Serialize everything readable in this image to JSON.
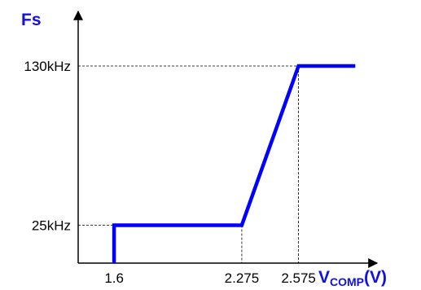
{
  "chart_data": {
    "type": "line",
    "ylabel": "Fs",
    "xlabel_main": "V",
    "xlabel_sub": "COMP",
    "xlabel_unit": "(V)",
    "x_ticks": [
      "1.6",
      "2.275",
      "2.575"
    ],
    "y_ticks": [
      "25kHz",
      "130kHz"
    ],
    "x_tick_values": [
      1.6,
      2.275,
      2.575
    ],
    "y_tick_values": [
      25,
      130
    ],
    "series": [
      {
        "color": "#0000ff",
        "points": [
          {
            "x": 1.6,
            "y": 0
          },
          {
            "x": 1.6,
            "y": 25
          },
          {
            "x": 2.275,
            "y": 25
          },
          {
            "x": 2.575,
            "y": 130
          },
          {
            "x": 2.875,
            "y": 130
          }
        ]
      }
    ],
    "xlim": [
      1.41,
      2.99
    ],
    "ylim": [
      0,
      166
    ],
    "axis_color": "#000000",
    "label_color": "#1010e0",
    "grid": false,
    "guide_lines": "dashed"
  }
}
